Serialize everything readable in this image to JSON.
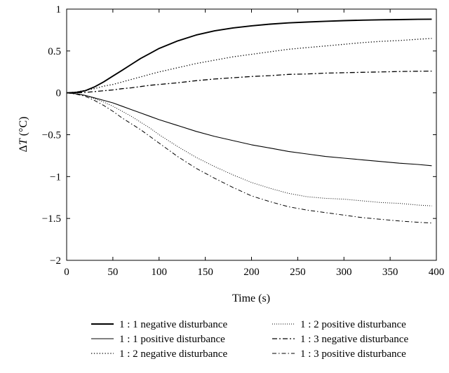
{
  "chart_data": {
    "type": "line",
    "xlabel": "Time (s)",
    "ylabel_prefix": "Δ",
    "ylabel_var": "T",
    "ylabel_unit": " (°C)",
    "xlim": [
      0,
      400
    ],
    "ylim": [
      -2,
      1
    ],
    "xticks": [
      0,
      50,
      100,
      150,
      200,
      250,
      300,
      350,
      400
    ],
    "yticks": [
      1,
      0.5,
      0,
      -0.5,
      -1,
      -1.5,
      -2
    ],
    "ytick_labels": [
      "1",
      "0.5",
      "0",
      "−0.5",
      "−1",
      "−1.5",
      "−2"
    ],
    "x": [
      0,
      10,
      20,
      30,
      40,
      50,
      60,
      70,
      80,
      90,
      100,
      120,
      140,
      160,
      180,
      200,
      220,
      240,
      260,
      280,
      300,
      320,
      340,
      360,
      380,
      395
    ],
    "grid": false,
    "legend_position": "below plot, two columns",
    "series": [
      {
        "name": "1 : 1 negative disturbance",
        "style": "solid-thick",
        "values": [
          0,
          0.005,
          0.025,
          0.07,
          0.13,
          0.2,
          0.27,
          0.34,
          0.41,
          0.47,
          0.53,
          0.62,
          0.69,
          0.74,
          0.775,
          0.8,
          0.82,
          0.835,
          0.845,
          0.855,
          0.862,
          0.868,
          0.872,
          0.875,
          0.878,
          0.88
        ]
      },
      {
        "name": "1 : 1 positive disturbance",
        "style": "solid-thin",
        "values": [
          0,
          -0.01,
          -0.03,
          -0.06,
          -0.09,
          -0.12,
          -0.16,
          -0.2,
          -0.24,
          -0.28,
          -0.32,
          -0.39,
          -0.46,
          -0.52,
          -0.57,
          -0.62,
          -0.66,
          -0.7,
          -0.73,
          -0.76,
          -0.78,
          -0.8,
          -0.82,
          -0.84,
          -0.855,
          -0.87
        ]
      },
      {
        "name": "1 : 2 negative disturbance",
        "style": "dotted",
        "values": [
          0,
          0.01,
          0.03,
          0.05,
          0.08,
          0.1,
          0.13,
          0.16,
          0.19,
          0.22,
          0.25,
          0.3,
          0.35,
          0.39,
          0.43,
          0.46,
          0.49,
          0.52,
          0.54,
          0.56,
          0.58,
          0.6,
          0.615,
          0.625,
          0.64,
          0.65
        ]
      },
      {
        "name": "1 : 2 positive disturbance",
        "style": "dotted-fine",
        "values": [
          0,
          -0.01,
          -0.03,
          -0.07,
          -0.11,
          -0.16,
          -0.22,
          -0.28,
          -0.35,
          -0.42,
          -0.5,
          -0.64,
          -0.77,
          -0.88,
          -0.98,
          -1.07,
          -1.14,
          -1.2,
          -1.24,
          -1.26,
          -1.27,
          -1.29,
          -1.31,
          -1.32,
          -1.34,
          -1.35
        ]
      },
      {
        "name": "1 : 3 negative disturbance",
        "style": "dashdot",
        "values": [
          0,
          0.0,
          0.005,
          0.015,
          0.025,
          0.035,
          0.05,
          0.06,
          0.075,
          0.09,
          0.1,
          0.12,
          0.145,
          0.165,
          0.18,
          0.195,
          0.205,
          0.22,
          0.225,
          0.235,
          0.24,
          0.245,
          0.25,
          0.255,
          0.258,
          0.26
        ]
      },
      {
        "name": "1 : 3 positive disturbance",
        "style": "dashdot-fine",
        "values": [
          0,
          -0.015,
          -0.04,
          -0.09,
          -0.15,
          -0.22,
          -0.3,
          -0.37,
          -0.44,
          -0.52,
          -0.6,
          -0.76,
          -0.9,
          -1.02,
          -1.13,
          -1.23,
          -1.3,
          -1.36,
          -1.4,
          -1.43,
          -1.46,
          -1.49,
          -1.51,
          -1.53,
          -1.545,
          -1.555
        ]
      }
    ],
    "legend_order": [
      0,
      3,
      1,
      4,
      2,
      5
    ]
  }
}
